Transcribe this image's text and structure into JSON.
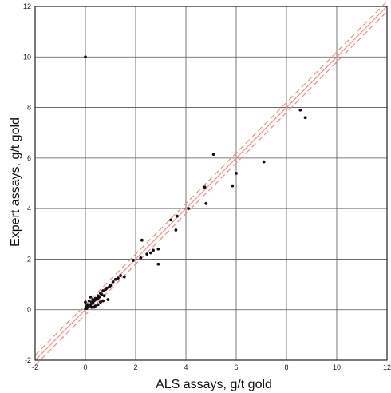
{
  "chart_data": {
    "type": "scatter",
    "title": "",
    "xlabel": "ALS assays, g/t gold",
    "ylabel": "Expert assays, g/t gold",
    "xlim": [
      -2,
      12
    ],
    "ylim": [
      -2,
      12
    ],
    "xticks": [
      -2,
      0,
      2,
      4,
      6,
      8,
      10,
      12
    ],
    "yticks": [
      -2,
      0,
      2,
      4,
      6,
      8,
      10,
      12
    ],
    "xtick_labels": [
      "-2",
      "0",
      "2",
      "4",
      "6",
      "8",
      "10",
      "12"
    ],
    "ytick_labels": [
      "-2",
      "0",
      "2",
      "4",
      "6",
      "8",
      "10",
      "12"
    ],
    "grid": true,
    "legend": "none",
    "colors": {
      "points": "#111111",
      "reference_line": "#f08a8a",
      "grid": "#555555",
      "frame": "#222222"
    },
    "reference_lines": [
      {
        "style": "solid",
        "points": [
          [
            -2,
            -2
          ],
          [
            12,
            12
          ]
        ]
      },
      {
        "style": "dashed",
        "points": [
          [
            -2,
            -2.2
          ],
          [
            12,
            11.8
          ]
        ]
      },
      {
        "style": "dashed",
        "points": [
          [
            -2,
            -1.8
          ],
          [
            12,
            12.2
          ]
        ]
      }
    ],
    "points": [
      [
        0.0,
        10.0
      ],
      [
        8.55,
        7.9
      ],
      [
        8.75,
        7.6
      ],
      [
        7.1,
        5.85
      ],
      [
        5.1,
        6.15
      ],
      [
        6.0,
        5.4
      ],
      [
        5.85,
        4.9
      ],
      [
        4.75,
        4.85
      ],
      [
        4.8,
        4.2
      ],
      [
        4.1,
        4.0
      ],
      [
        3.4,
        3.55
      ],
      [
        3.65,
        3.7
      ],
      [
        3.6,
        3.15
      ],
      [
        2.25,
        2.75
      ],
      [
        2.7,
        2.35
      ],
      [
        2.9,
        2.4
      ],
      [
        2.6,
        2.25
      ],
      [
        2.2,
        2.05
      ],
      [
        2.45,
        2.2
      ],
      [
        2.9,
        1.8
      ],
      [
        1.9,
        1.95
      ],
      [
        1.55,
        1.3
      ],
      [
        1.4,
        1.35
      ],
      [
        1.3,
        1.25
      ],
      [
        1.2,
        1.2
      ],
      [
        1.1,
        1.1
      ],
      [
        1.0,
        0.95
      ],
      [
        0.95,
        0.9
      ],
      [
        0.85,
        0.85
      ],
      [
        0.8,
        0.8
      ],
      [
        0.9,
        0.4
      ],
      [
        0.7,
        0.75
      ],
      [
        0.65,
        0.6
      ],
      [
        0.6,
        0.65
      ],
      [
        0.55,
        0.5
      ],
      [
        0.5,
        0.55
      ],
      [
        0.5,
        0.45
      ],
      [
        0.45,
        0.4
      ],
      [
        0.4,
        0.45
      ],
      [
        0.35,
        0.35
      ],
      [
        0.3,
        0.4
      ],
      [
        0.3,
        0.25
      ],
      [
        0.25,
        0.3
      ],
      [
        0.2,
        0.2
      ],
      [
        0.2,
        0.5
      ],
      [
        0.15,
        0.15
      ],
      [
        0.1,
        0.2
      ],
      [
        0.1,
        0.1
      ],
      [
        0.05,
        0.05
      ],
      [
        0.05,
        0.15
      ],
      [
        0.0,
        0.05
      ],
      [
        0.0,
        0.3
      ],
      [
        0.6,
        0.3
      ],
      [
        0.5,
        0.2
      ],
      [
        0.4,
        0.15
      ],
      [
        0.35,
        0.1
      ],
      [
        0.7,
        0.35
      ],
      [
        0.75,
        0.55
      ],
      [
        0.15,
        0.35
      ],
      [
        0.25,
        0.1
      ]
    ]
  }
}
